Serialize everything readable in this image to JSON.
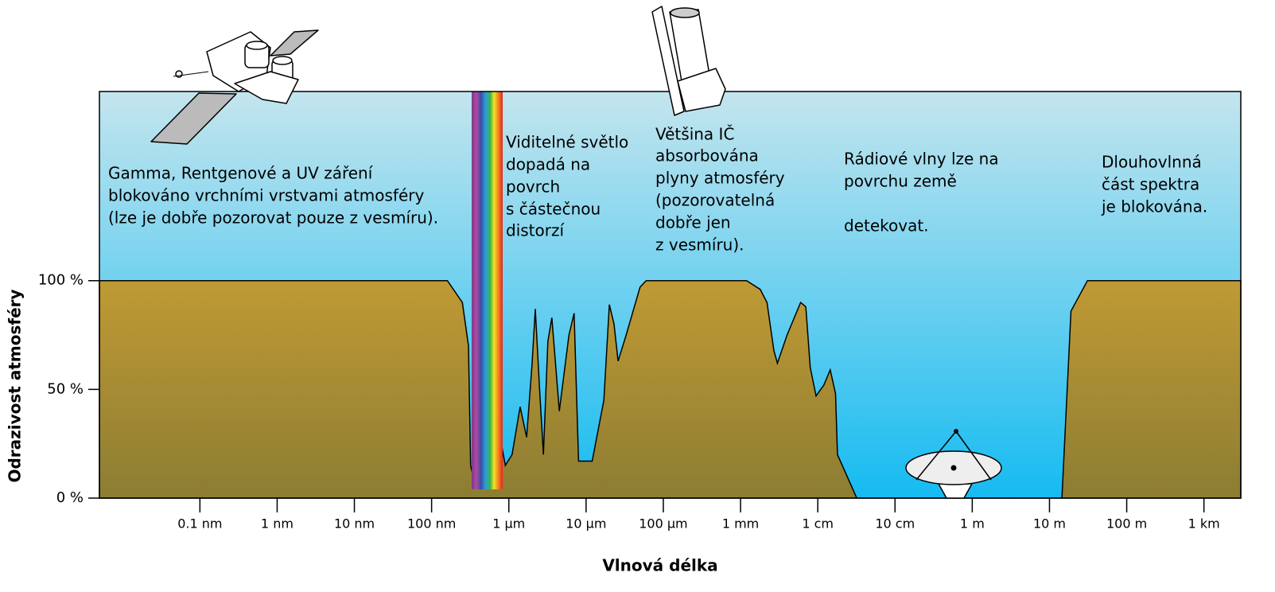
{
  "chart_data": {
    "type": "area",
    "xscale": "log",
    "x_label": "Vlnová délka",
    "y_label": "Odrazivost atmosféry",
    "x": [
      5e-12,
      1e-07,
      1.6e-07,
      2.5e-07,
      3e-07,
      3.2e-07,
      3.5e-07,
      4e-07,
      4.5e-07,
      6e-07,
      8e-07,
      9e-07,
      1.1e-06,
      1.4e-06,
      1.7e-06,
      2e-06,
      2.2e-06,
      2.5e-06,
      2.8e-06,
      3.2e-06,
      3.6e-06,
      4.5e-06,
      6e-06,
      7e-06,
      8e-06,
      1.2e-05,
      1.7e-05,
      2e-05,
      2.3e-05,
      2.6e-05,
      3.3e-05,
      5e-05,
      6e-05,
      0.0012,
      0.0018,
      0.0022,
      0.0027,
      0.003,
      0.004,
      0.006,
      0.007,
      0.008,
      0.0095,
      0.012,
      0.0145,
      0.017,
      0.018,
      0.032,
      14.5,
      19,
      31,
      3000
    ],
    "values": [
      100,
      100,
      100,
      90,
      70,
      15,
      9,
      7,
      7,
      14,
      25,
      15,
      20,
      42,
      28,
      62,
      87,
      50,
      20,
      72,
      83,
      40,
      75,
      85,
      17,
      17,
      45,
      89,
      80,
      63,
      75,
      97,
      100,
      100,
      96,
      90,
      68,
      62,
      75,
      90,
      88,
      60,
      47,
      52,
      59,
      48,
      20,
      0,
      0,
      86,
      100,
      100
    ],
    "xlim": [
      5e-12,
      3000
    ],
    "ylim": [
      0,
      187
    ],
    "xticks": [
      {
        "value": 1e-10,
        "label": "0.1 nm"
      },
      {
        "value": 1e-09,
        "label": "1 nm"
      },
      {
        "value": 1e-08,
        "label": "10 nm"
      },
      {
        "value": 1e-07,
        "label": "100 nm"
      },
      {
        "value": 1e-06,
        "label": "1 µm"
      },
      {
        "value": 1e-05,
        "label": "10 µm"
      },
      {
        "value": 0.0001,
        "label": "100 µm"
      },
      {
        "value": 0.001,
        "label": "1 mm"
      },
      {
        "value": 0.01,
        "label": "1 cm"
      },
      {
        "value": 0.1,
        "label": "10 cm"
      },
      {
        "value": 1,
        "label": "1 m"
      },
      {
        "value": 10,
        "label": "10 m"
      },
      {
        "value": 100,
        "label": "100 m"
      },
      {
        "value": 1000,
        "label": "1 km"
      }
    ],
    "yticks": [
      {
        "value": 0,
        "label": "0 %"
      },
      {
        "value": 50,
        "label": "50 %"
      },
      {
        "value": 100,
        "label": "100 %"
      }
    ],
    "annotations": [
      {
        "lines": [
          "Gamma, Rentgenové a UV záření",
          "blokováno vrchními vrstvami atmosféry",
          "(lze je dobře pozorovat pouze z vesmíru)."
        ]
      },
      {
        "lines": [
          "Viditelné světlo",
          "dopadá na",
          "povrch",
          "s částečnou",
          "distorzí"
        ]
      },
      {
        "lines": [
          "Většina IČ",
          "absorbována",
          "plyny atmosféry",
          "(pozorovatelná",
          "dobře jen",
          "z vesmíru)."
        ]
      },
      {
        "lines": [
          "Rádiové vlny lze na",
          "povrchu země"
        ]
      },
      {
        "lines": [
          "detekovat."
        ]
      },
      {
        "lines": [
          "Dlouhovlnná",
          "část spektra",
          "je blokována."
        ]
      }
    ]
  }
}
